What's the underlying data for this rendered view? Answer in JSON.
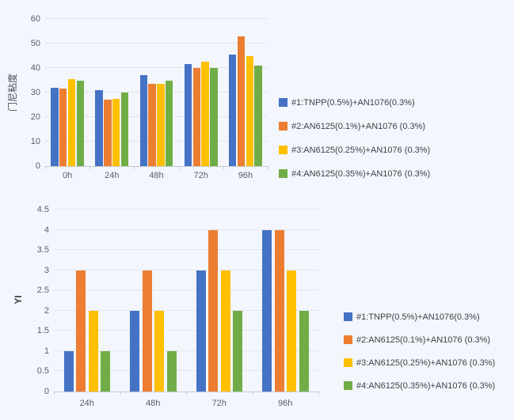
{
  "page": {
    "background_color": "#f3f6fc"
  },
  "chart_data": [
    {
      "type": "bar",
      "title": "",
      "xlabel": "",
      "ylabel": "门尼粘度",
      "categories": [
        "0h",
        "24h",
        "48h",
        "72h",
        "96h"
      ],
      "series": [
        {
          "name": "#1:TNPP(0.5%)+AN1076(0.3%)",
          "color": "#4472C4",
          "values": [
            32,
            31,
            37,
            41.5,
            45.5
          ]
        },
        {
          "name": "#2:AN6125(0.1%)+AN1076 (0.3%)",
          "color": "#ED7D31",
          "values": [
            31.5,
            27,
            33.5,
            40,
            53
          ]
        },
        {
          "name": "#3:AN6125(0.25%)+AN1076 (0.3%)",
          "color": "#FFC000",
          "values": [
            35.5,
            27.5,
            33.5,
            42.5,
            45
          ]
        },
        {
          "name": "#4:AN6125(0.35%)+AN1076 (0.3%)",
          "color": "#70AD47",
          "values": [
            35,
            30,
            35,
            40,
            41
          ]
        }
      ],
      "ylim": [
        0,
        60
      ],
      "ytick_step": 10,
      "grid": true,
      "legend_position": "right"
    },
    {
      "type": "bar",
      "title": "",
      "xlabel": "",
      "ylabel": "YI",
      "categories": [
        "24h",
        "48h",
        "72h",
        "96h"
      ],
      "series": [
        {
          "name": "#1:TNPP(0.5%)+AN1076(0.3%)",
          "color": "#4472C4",
          "values": [
            1,
            2,
            3,
            4
          ]
        },
        {
          "name": "#2:AN6125(0.1%)+AN1076 (0.3%)",
          "color": "#ED7D31",
          "values": [
            3,
            3,
            4,
            4
          ]
        },
        {
          "name": "#3:AN6125(0.25%)+AN1076 (0.3%)",
          "color": "#FFC000",
          "values": [
            2,
            2,
            3,
            3
          ]
        },
        {
          "name": "#4:AN6125(0.35%)+AN1076 (0.3%)",
          "color": "#70AD47",
          "values": [
            1,
            1,
            2,
            2
          ]
        }
      ],
      "ylim": [
        0,
        4.5
      ],
      "ytick_step": 0.5,
      "grid": true,
      "legend_position": "right"
    }
  ]
}
